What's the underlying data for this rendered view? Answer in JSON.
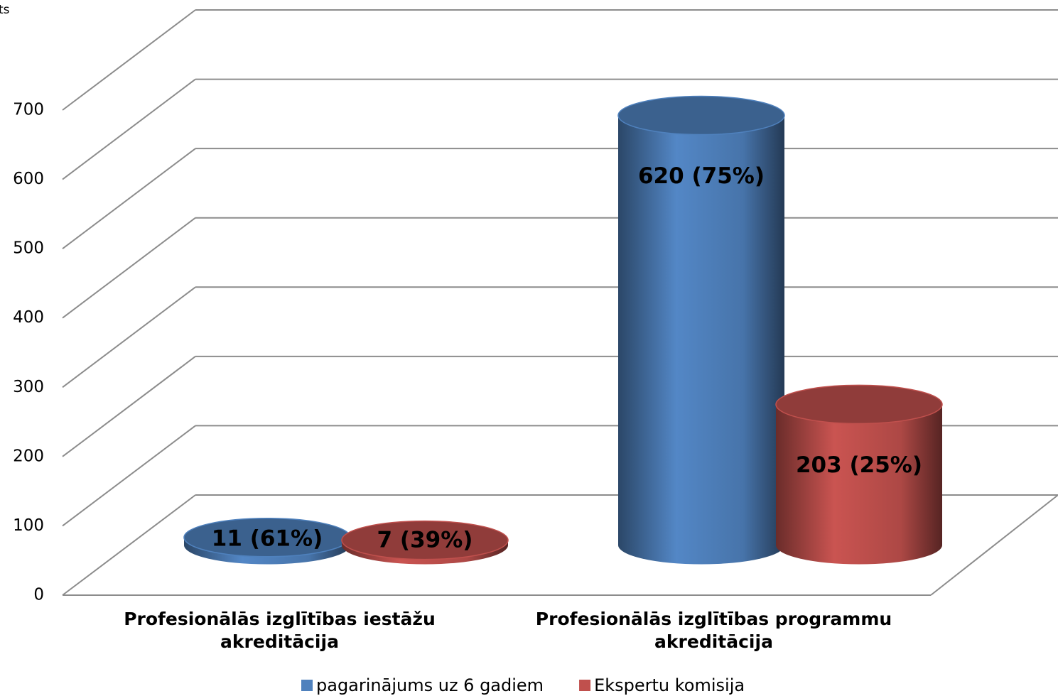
{
  "chart_data": {
    "type": "bar3d-cylinder",
    "y_label": "ts",
    "categories": [
      "Profesionālās izglītības iestāžu akreditācija",
      "Profesionālās izglītības programmu akreditācija"
    ],
    "series": [
      {
        "name": "pagarinājums uz 6 gadiem",
        "color": "#4f81bd",
        "values": [
          11,
          620
        ],
        "value_labels": [
          "11 (61%)",
          "620 (75%)"
        ]
      },
      {
        "name": "Ekspertu komisija",
        "color": "#c0504d",
        "values": [
          7,
          203
        ],
        "value_labels": [
          "7 (39%)",
          "203 (25%)"
        ]
      }
    ],
    "ylim": [
      0,
      700
    ],
    "yticks": [
      0,
      100,
      200,
      300,
      400,
      500,
      600,
      700
    ],
    "grid": true
  }
}
